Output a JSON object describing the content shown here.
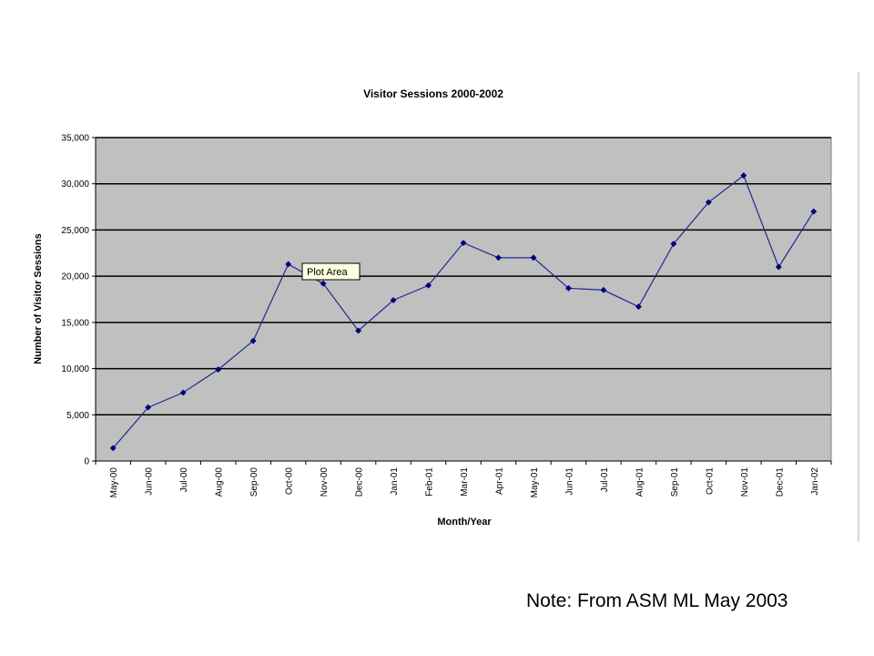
{
  "chart_data": {
    "type": "line",
    "title": "Visitor Sessions 2000-2002",
    "xlabel": "Month/Year",
    "ylabel": "Number of Visitor Sessions",
    "categories": [
      "May-00",
      "Jun-00",
      "Jul-00",
      "Aug-00",
      "Sep-00",
      "Oct-00",
      "Nov-00",
      "Dec-00",
      "Jan-01",
      "Feb-01",
      "Mar-01",
      "Apr-01",
      "May-01",
      "Jun-01",
      "Jul-01",
      "Aug-01",
      "Sep-01",
      "Oct-01",
      "Nov-01",
      "Dec-01",
      "Jan-02"
    ],
    "series": [
      {
        "values": [
          1400,
          5800,
          7400,
          9900,
          13000,
          21300,
          19200,
          14100,
          17400,
          19000,
          23600,
          22000,
          22000,
          18700,
          18500,
          16700,
          23500,
          28000,
          30900,
          21000,
          27000
        ]
      }
    ],
    "ylim": [
      0,
      35000
    ],
    "yticks": [
      "0",
      "5,000",
      "10,000",
      "15,000",
      "20,000",
      "25,000",
      "30,000",
      "35,000"
    ],
    "grid": true,
    "legend": "none",
    "colors": {
      "plot_background": "#c0c0c0",
      "line": "#1f2a8c",
      "marker": "#000080",
      "gridline": "#000000"
    },
    "annotations": [
      {
        "text": "Plot Area",
        "near_category": "Oct-00"
      }
    ]
  },
  "note": "Note: From ASM ML May 2003"
}
